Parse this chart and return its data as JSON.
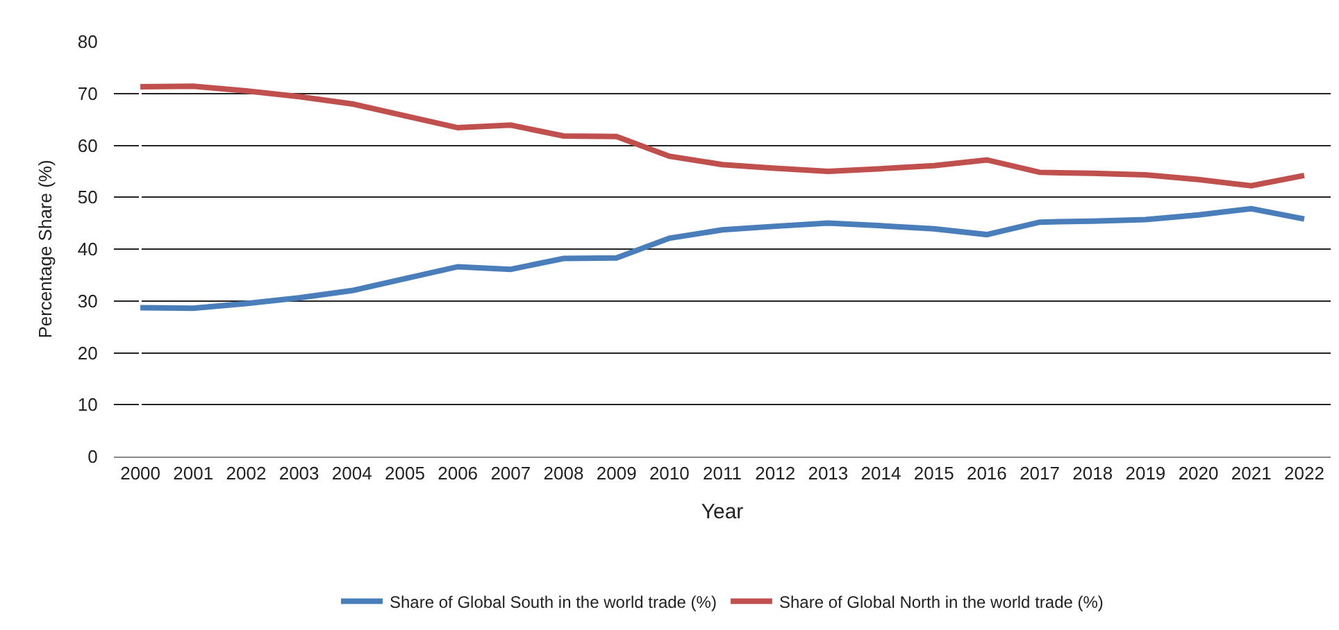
{
  "chart_data": {
    "type": "line",
    "xlabel": "Year",
    "ylabel": "Percentage Share (%)",
    "categories": [
      "2000",
      "2001",
      "2002",
      "2003",
      "2004",
      "2005",
      "2006",
      "2007",
      "2008",
      "2009",
      "2010",
      "2011",
      "2012",
      "2013",
      "2014",
      "2015",
      "2016",
      "2017",
      "2018",
      "2019",
      "2020",
      "2021",
      "2022"
    ],
    "series": [
      {
        "name": "Share of Global South in the world trade (%)",
        "color": "#4a7ebb",
        "values": [
          28.7,
          28.6,
          29.5,
          30.6,
          32,
          34.3,
          36.6,
          36.1,
          38.2,
          38.3,
          42.1,
          43.7,
          44.4,
          45,
          44.5,
          43.9,
          42.8,
          45.2,
          45.4,
          45.7,
          46.6,
          47.8,
          45.8
        ]
      },
      {
        "name": "Share of Global North in the world trade (%)",
        "color": "#c0504d",
        "values": [
          71.3,
          71.4,
          70.5,
          69.4,
          68,
          65.7,
          63.4,
          63.9,
          61.8,
          61.7,
          57.9,
          56.3,
          55.6,
          55,
          55.5,
          56.1,
          57.2,
          54.8,
          54.6,
          54.3,
          53.4,
          52.2,
          54.2
        ]
      }
    ],
    "ylim": [
      0,
      80
    ],
    "yticks": [
      0,
      10,
      20,
      30,
      40,
      50,
      60,
      70,
      80
    ],
    "grid": "y",
    "legend": "bottom",
    "marker": "none",
    "line_style": "solid"
  }
}
